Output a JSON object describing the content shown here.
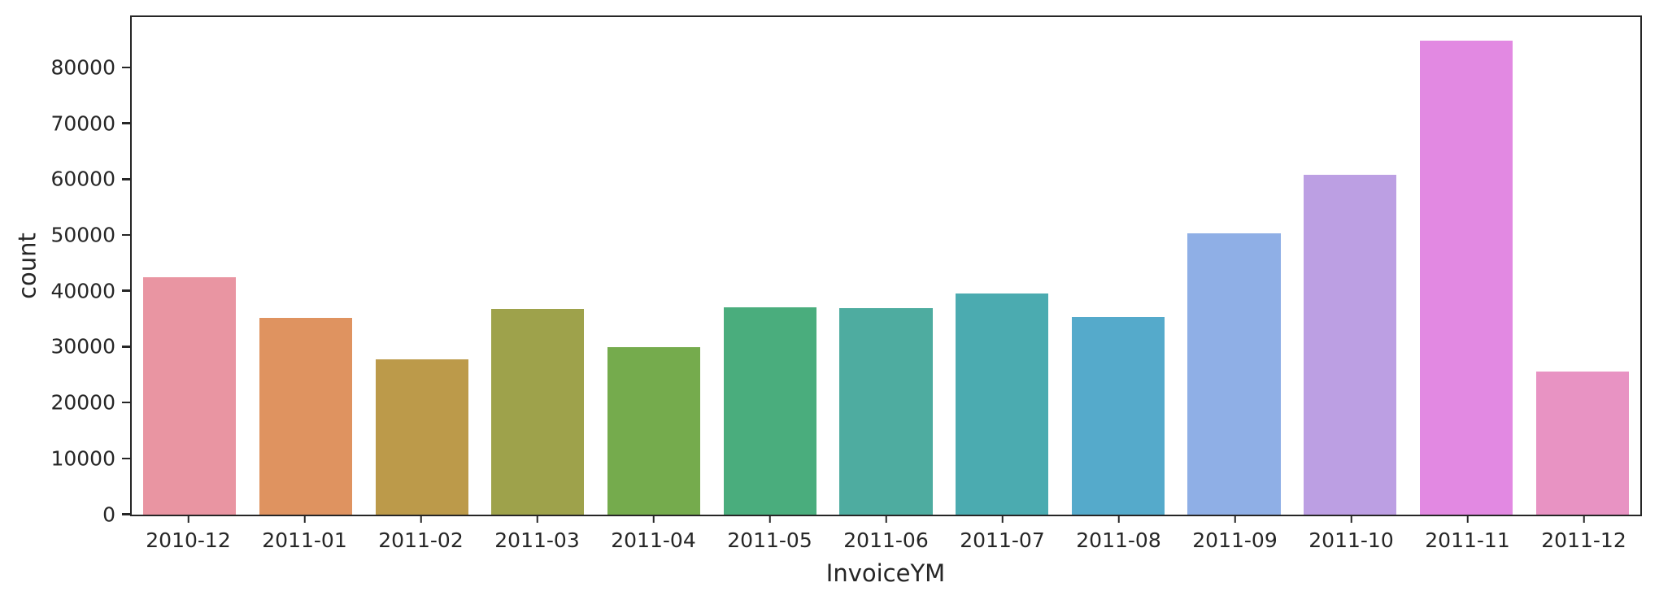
{
  "figure": {
    "background_color": "#ffffff",
    "text_color": "#262626",
    "spine_color": "#262626"
  },
  "chart_data": {
    "type": "bar",
    "title": "",
    "xlabel": "InvoiceYM",
    "ylabel": "count",
    "categories": [
      "2010-12",
      "2011-01",
      "2011-02",
      "2011-03",
      "2011-04",
      "2011-05",
      "2011-06",
      "2011-07",
      "2011-08",
      "2011-09",
      "2011-10",
      "2011-11",
      "2011-12"
    ],
    "values": [
      42481,
      35147,
      27707,
      36748,
      29916,
      37030,
      36874,
      39518,
      35284,
      50226,
      60742,
      84711,
      25525
    ],
    "bar_colors": [
      "#e995a2",
      "#df9360",
      "#bc9a4a",
      "#9ea24b",
      "#75ab4d",
      "#4aad7d",
      "#4eaca0",
      "#4babb0",
      "#55aacb",
      "#8fafe6",
      "#bc9fe3",
      "#e289e2",
      "#e893c3"
    ],
    "ylim": [
      0,
      88947
    ],
    "yticks": [
      0,
      10000,
      20000,
      30000,
      40000,
      50000,
      60000,
      70000,
      80000
    ],
    "ytick_labels": [
      "0",
      "10000",
      "20000",
      "30000",
      "40000",
      "50000",
      "60000",
      "70000",
      "80000"
    ],
    "xtick_labels": [
      "2010-12",
      "2011-01",
      "2011-02",
      "2011-03",
      "2011-04",
      "2011-05",
      "2011-06",
      "2011-07",
      "2011-08",
      "2011-09",
      "2011-10",
      "2011-11",
      "2011-12"
    ],
    "grid": false,
    "legend": null,
    "bar_width_fraction": 0.8
  }
}
